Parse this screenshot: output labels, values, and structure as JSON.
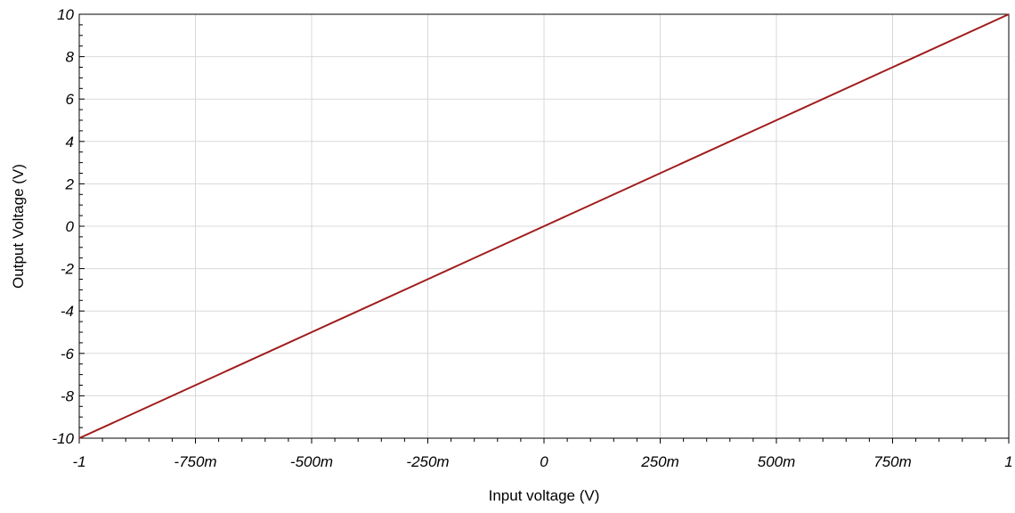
{
  "chart_data": {
    "type": "line",
    "title": "",
    "xlabel": "Input voltage (V)",
    "ylabel": "Output Voltage (V)",
    "xlim": [
      -1,
      1
    ],
    "ylim": [
      -10,
      10
    ],
    "x_ticks": [
      {
        "value": -1,
        "label": "-1"
      },
      {
        "value": -0.75,
        "label": "-750m"
      },
      {
        "value": -0.5,
        "label": "-500m"
      },
      {
        "value": -0.25,
        "label": "-250m"
      },
      {
        "value": 0,
        "label": "0"
      },
      {
        "value": 0.25,
        "label": "250m"
      },
      {
        "value": 0.5,
        "label": "500m"
      },
      {
        "value": 0.75,
        "label": "750m"
      },
      {
        "value": 1,
        "label": "1"
      }
    ],
    "y_ticks": [
      {
        "value": -10,
        "label": "-10"
      },
      {
        "value": -8,
        "label": "-8"
      },
      {
        "value": -6,
        "label": "-6"
      },
      {
        "value": -4,
        "label": "-4"
      },
      {
        "value": -2,
        "label": "-2"
      },
      {
        "value": 0,
        "label": "0"
      },
      {
        "value": 2,
        "label": "2"
      },
      {
        "value": 4,
        "label": "4"
      },
      {
        "value": 6,
        "label": "6"
      },
      {
        "value": 8,
        "label": "8"
      },
      {
        "value": 10,
        "label": "10"
      }
    ],
    "grid": true,
    "series": [
      {
        "color": "#a01c1c",
        "x": [
          -1,
          -0.75,
          -0.5,
          -0.25,
          0,
          0.25,
          0.5,
          0.75,
          1
        ],
        "y": [
          -10,
          -7.5,
          -5,
          -2.5,
          0,
          2.5,
          5,
          7.5,
          10
        ]
      }
    ]
  }
}
